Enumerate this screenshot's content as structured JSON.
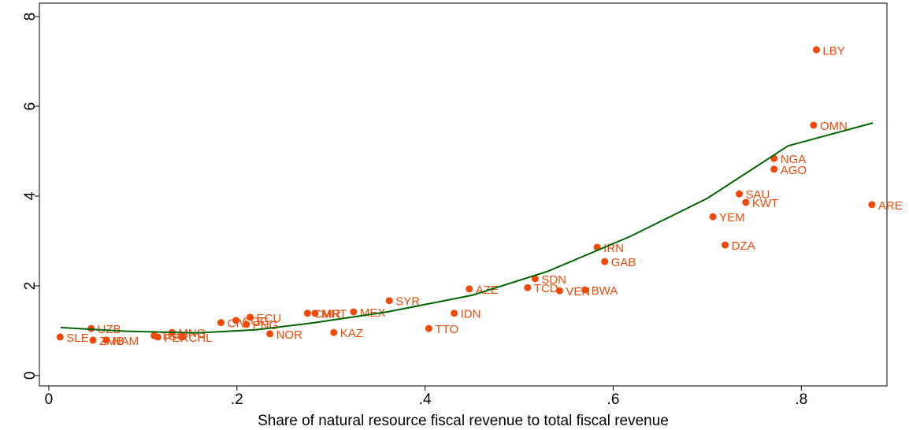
{
  "chart_data": {
    "type": "scatter",
    "x_label": "Share of natural resource fiscal revenue to total fiscal revenue",
    "xlim": [
      -0.01,
      0.891
    ],
    "ylim": [
      -0.23,
      8.3
    ],
    "xticks": [
      0,
      {
        "value": 0.2,
        "label": ".2"
      },
      {
        "value": 0.4,
        "label": ".4"
      },
      {
        "value": 0.6,
        "label": ".6"
      },
      {
        "value": 0.8,
        "label": ".8"
      }
    ],
    "yticks": [
      0,
      2,
      4,
      6,
      8
    ],
    "color": "#f04a0a",
    "point_labels": [
      "SLE",
      "UZB",
      "ZMB",
      "NAM",
      "TGO",
      "PER",
      "CHL",
      "MNG",
      "CIV",
      "COG",
      "PNG",
      "ECU",
      "NOR",
      "CMR",
      "MRT",
      "MEX",
      "KAZ",
      "SYR",
      "TTO",
      "IDN",
      "AZE",
      "TCD",
      "SDN",
      "VEN",
      "BWA",
      "IRN",
      "GAB",
      "YEM",
      "DZA",
      "SAU",
      "KWT",
      "NGA",
      "AGO",
      "OMN",
      "LBY",
      "ARE"
    ],
    "x": [
      0.012,
      0.045,
      0.047,
      0.061,
      0.112,
      0.116,
      0.142,
      0.131,
      0.183,
      0.199,
      0.21,
      0.214,
      0.235,
      0.275,
      0.283,
      0.324,
      0.303,
      0.362,
      0.404,
      0.431,
      0.447,
      0.509,
      0.517,
      0.543,
      0.57,
      0.583,
      0.591,
      0.706,
      0.719,
      0.734,
      0.741,
      0.771,
      0.771,
      0.813,
      0.816,
      0.875
    ],
    "values": [
      0.86,
      1.05,
      0.79,
      0.79,
      0.89,
      0.86,
      0.86,
      0.96,
      1.18,
      1.23,
      1.14,
      1.3,
      0.93,
      1.39,
      1.39,
      1.42,
      0.96,
      1.67,
      1.05,
      1.39,
      1.93,
      1.96,
      2.16,
      1.89,
      1.91,
      2.86,
      2.54,
      3.54,
      2.91,
      4.05,
      3.86,
      4.84,
      4.6,
      5.58,
      7.26,
      3.81
    ],
    "fit": {
      "color": "#006400",
      "x": [
        0.0126,
        0.08,
        0.157,
        0.22,
        0.283,
        0.36,
        0.45,
        0.53,
        0.618,
        0.7,
        0.786,
        0.876
      ],
      "values": [
        1.07,
        0.99,
        0.95,
        1.02,
        1.18,
        1.42,
        1.79,
        2.32,
        3.1,
        3.95,
        5.12,
        5.63
      ]
    }
  }
}
